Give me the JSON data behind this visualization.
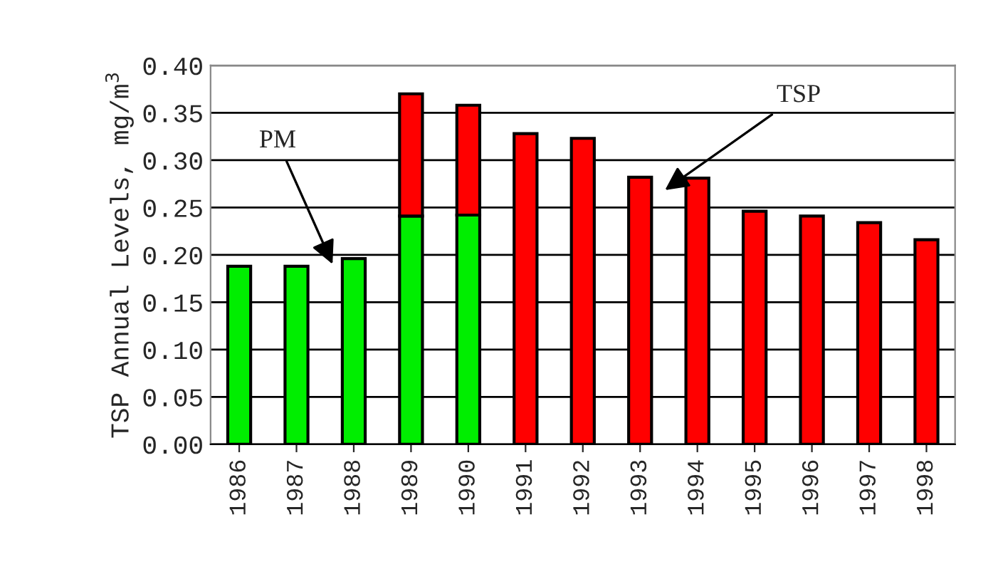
{
  "chart_data": {
    "type": "bar",
    "stacked": true,
    "ylabel": "TSP Annual Levels, mg/m$^{3}$",
    "categories": [
      "1986",
      "1987",
      "1988",
      "1989",
      "1990",
      "1991",
      "1992",
      "1993",
      "1994",
      "1995",
      "1996",
      "1997",
      "1998"
    ],
    "series": [
      {
        "color": "#00ee00",
        "values": [
          0.188,
          0.188,
          0.196,
          0.241,
          0.242,
          null,
          null,
          null,
          null,
          null,
          null,
          null,
          null
        ]
      },
      {
        "color": "#ff0000",
        "values": [
          null,
          null,
          null,
          0.129,
          0.116,
          0.328,
          0.323,
          0.282,
          0.281,
          0.246,
          0.241,
          0.234,
          0.216
        ]
      }
    ],
    "ylim": [
      0,
      0.4
    ],
    "yticks": [
      {
        "value": 0,
        "label": "0.00"
      },
      {
        "value": 0.05,
        "label": "0.05"
      },
      {
        "value": 0.1,
        "label": "0.10"
      },
      {
        "value": 0.15,
        "label": "0.15"
      },
      {
        "value": 0.2,
        "label": "0.20"
      },
      {
        "value": 0.25,
        "label": "0.25"
      },
      {
        "value": 0.3,
        "label": "0.30"
      },
      {
        "value": 0.35,
        "label": "0.35"
      },
      {
        "value": 0.4,
        "label": "0.40"
      }
    ],
    "grid": "y",
    "legend": false,
    "annotations": [
      "PM",
      "TSP"
    ]
  }
}
